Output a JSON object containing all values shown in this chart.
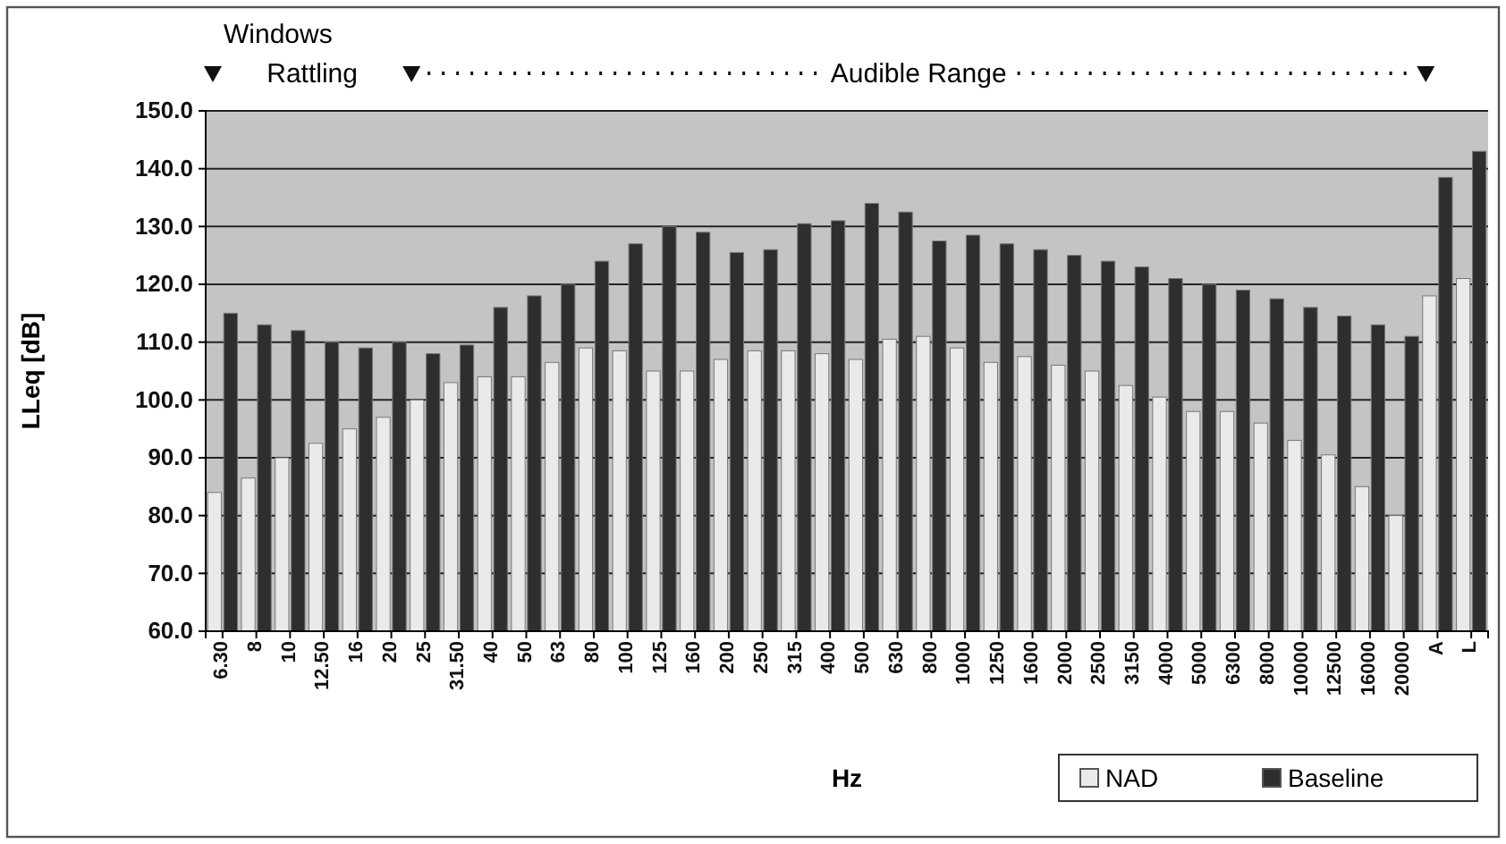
{
  "chart_data": {
    "type": "bar",
    "xlabel": "Hz",
    "ylabel": "LLeq [dB]",
    "annotations": [
      "Windows",
      "Rattling",
      "Audible Range"
    ],
    "categories": [
      "6.30",
      "8",
      "10",
      "12.50",
      "16",
      "20",
      "25",
      "31.50",
      "40",
      "50",
      "63",
      "80",
      "100",
      "125",
      "160",
      "200",
      "250",
      "315",
      "400",
      "500",
      "630",
      "800",
      "1000",
      "1250",
      "1600",
      "2000",
      "2500",
      "3150",
      "4000",
      "5000",
      "6300",
      "8000",
      "10000",
      "12500",
      "16000",
      "20000",
      "A",
      "L"
    ],
    "series": [
      {
        "name": "NAD",
        "color": "#eaeaea",
        "values": [
          84,
          86.5,
          90,
          92.5,
          95,
          97,
          100,
          103,
          104,
          104,
          106.5,
          109,
          108.5,
          105,
          105,
          107,
          108.5,
          108.5,
          108,
          107,
          110.5,
          111,
          109,
          106.5,
          107.5,
          106,
          105,
          102.5,
          100.5,
          98,
          98,
          96,
          93,
          90.5,
          85,
          80,
          118,
          121
        ]
      },
      {
        "name": "Baseline",
        "color": "#2e2e2e",
        "values": [
          115,
          113,
          112,
          110,
          109,
          110,
          108,
          109.5,
          116,
          118,
          120,
          124,
          127,
          130,
          129,
          125.5,
          126,
          130.5,
          131,
          134,
          132.5,
          127.5,
          128.5,
          127,
          126,
          125,
          124,
          123,
          121,
          120,
          119,
          117.5,
          116,
          114.5,
          113,
          111,
          138.5,
          143
        ]
      }
    ],
    "ylim": [
      60,
      150
    ],
    "yticks": [
      {
        "value": 60,
        "label": "60.0"
      },
      {
        "value": 70,
        "label": "70.0"
      },
      {
        "value": 80,
        "label": "80.0"
      },
      {
        "value": 90,
        "label": "90.0"
      },
      {
        "value": 100,
        "label": "100.0"
      },
      {
        "value": 110,
        "label": "110.0"
      },
      {
        "value": 120,
        "label": "120.0"
      },
      {
        "value": 130,
        "label": "130.0"
      },
      {
        "value": 140,
        "label": "140.0"
      },
      {
        "value": 150,
        "label": "150.0"
      }
    ],
    "grid": "y",
    "legend": "bottom right"
  }
}
